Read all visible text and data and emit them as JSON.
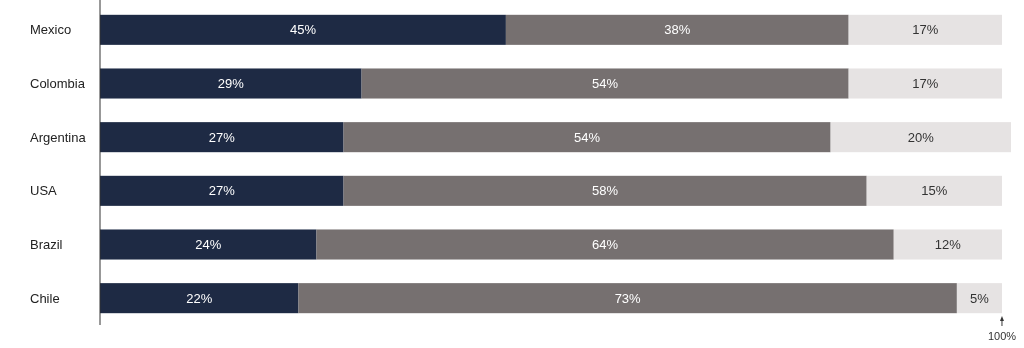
{
  "chart_data": {
    "type": "bar",
    "orientation": "horizontal",
    "stacked": true,
    "categories": [
      "Mexico",
      "Colombia",
      "Argentina",
      "USA",
      "Brazil",
      "Chile"
    ],
    "series": [
      {
        "color": "#1e2a44",
        "values": [
          45,
          29,
          27,
          27,
          24,
          22
        ],
        "value_labels": [
          "45%",
          "29%",
          "27%",
          "27%",
          "24%",
          "22%"
        ]
      },
      {
        "color": "#767070",
        "values": [
          38,
          54,
          54,
          58,
          64,
          73
        ],
        "value_labels": [
          "38%",
          "54%",
          "54%",
          "58%",
          "64%",
          "73%"
        ]
      },
      {
        "color": "#e6e3e3",
        "values": [
          17,
          17,
          20,
          15,
          12,
          5
        ],
        "value_labels": [
          "17%",
          "17%",
          "20%",
          "15%",
          "12%",
          "5%"
        ]
      }
    ],
    "xlim": [
      0,
      101
    ],
    "xticks": [
      {
        "value": 100,
        "label": "100%"
      }
    ],
    "grid": false
  }
}
